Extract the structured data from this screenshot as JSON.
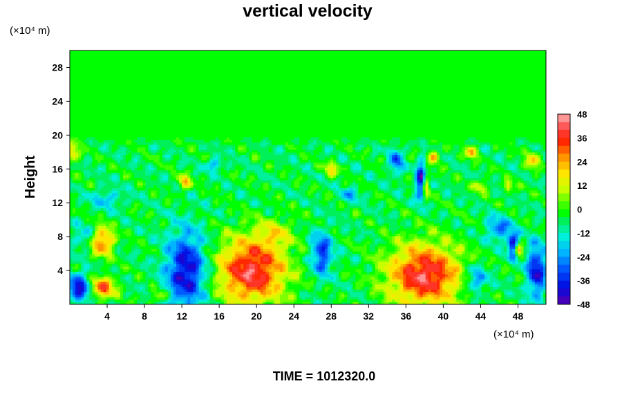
{
  "chart_data": {
    "type": "heatmap",
    "title": "vertical velocity",
    "ylabel": "Height",
    "xunit": "(×10⁴ m)",
    "yunit": "(×10⁴ m)",
    "footer": "TIME = 1012320.0",
    "xlim": [
      0,
      51
    ],
    "ylim": [
      0,
      30
    ],
    "x_ticks": [
      4,
      8,
      12,
      16,
      20,
      24,
      28,
      32,
      36,
      40,
      44,
      48
    ],
    "y_ticks": [
      4,
      8,
      12,
      16,
      20,
      24,
      28
    ],
    "colorbar": {
      "range": [
        -48,
        48
      ],
      "ticks": [
        48,
        36,
        24,
        12,
        0,
        -12,
        -24,
        -36,
        -48
      ]
    },
    "turbulent_layer_top": 20,
    "features": [
      {
        "x": 19.5,
        "y": 4.0,
        "sx": 2.6,
        "sy": 2.8,
        "value": 46
      },
      {
        "x": 38.0,
        "y": 3.5,
        "sx": 2.8,
        "sy": 2.6,
        "value": 46
      },
      {
        "x": 3.5,
        "y": 7.5,
        "sx": 0.9,
        "sy": 1.2,
        "value": 34
      },
      {
        "x": 3.5,
        "y": 2.0,
        "sx": 1.0,
        "sy": 0.9,
        "value": 36
      },
      {
        "x": 12.5,
        "y": 4.0,
        "sx": 1.5,
        "sy": 3.2,
        "value": -38
      },
      {
        "x": 27.0,
        "y": 6.0,
        "sx": 0.8,
        "sy": 1.8,
        "value": -30
      },
      {
        "x": 1.0,
        "y": 2.0,
        "sx": 0.9,
        "sy": 1.2,
        "value": -36
      },
      {
        "x": 43.5,
        "y": 3.0,
        "sx": 0.9,
        "sy": 1.1,
        "value": -24
      },
      {
        "x": 50.0,
        "y": 4.0,
        "sx": 0.7,
        "sy": 2.2,
        "value": -36
      },
      {
        "x": 47.5,
        "y": 7.0,
        "sx": 0.4,
        "sy": 1.0,
        "value": -40
      },
      {
        "x": 48.0,
        "y": 6.5,
        "sx": 0.3,
        "sy": 0.5,
        "value": 40
      },
      {
        "x": 37.7,
        "y": 14.5,
        "sx": 0.4,
        "sy": 1.6,
        "value": -46
      },
      {
        "x": 38.1,
        "y": 14.0,
        "sx": 0.3,
        "sy": 1.2,
        "value": 38
      },
      {
        "x": 35.0,
        "y": 17.0,
        "sx": 0.5,
        "sy": 1.1,
        "value": -26
      },
      {
        "x": 12.3,
        "y": 14.5,
        "sx": 0.5,
        "sy": 0.6,
        "value": 26
      },
      {
        "x": 28.0,
        "y": 16.0,
        "sx": 0.6,
        "sy": 0.6,
        "value": 20
      },
      {
        "x": 0.3,
        "y": 18.0,
        "sx": 0.5,
        "sy": 0.8,
        "value": 24
      },
      {
        "x": 43.0,
        "y": 18.0,
        "sx": 0.4,
        "sy": 0.5,
        "value": 30
      },
      {
        "x": 39.0,
        "y": 17.5,
        "sx": 0.4,
        "sy": 0.6,
        "value": 28
      },
      {
        "x": 44.0,
        "y": 14.0,
        "sx": 0.5,
        "sy": 0.5,
        "value": 20
      },
      {
        "x": 47.0,
        "y": 14.0,
        "sx": 0.3,
        "sy": 0.5,
        "value": 24
      },
      {
        "x": 49.5,
        "y": 17.0,
        "sx": 0.5,
        "sy": 0.8,
        "value": 22
      },
      {
        "x": 15.5,
        "y": 16.5,
        "sx": 0.6,
        "sy": 0.5,
        "value": -20
      },
      {
        "x": 30.0,
        "y": 13.0,
        "sx": 0.7,
        "sy": 0.6,
        "value": -16
      },
      {
        "x": 4.0,
        "y": 12.5,
        "sx": 1.2,
        "sy": 0.8,
        "value": -14
      },
      {
        "x": 46.0,
        "y": 9.0,
        "sx": 1.0,
        "sy": 1.0,
        "value": -22
      },
      {
        "x": 1.5,
        "y": 8.0,
        "sx": 0.8,
        "sy": 0.9,
        "value": -14
      },
      {
        "x": 22.0,
        "y": 8.5,
        "sx": 1.4,
        "sy": 1.2,
        "value": 14
      },
      {
        "x": 9.5,
        "y": 1.0,
        "sx": 0.6,
        "sy": 0.5,
        "value": 18
      }
    ]
  }
}
